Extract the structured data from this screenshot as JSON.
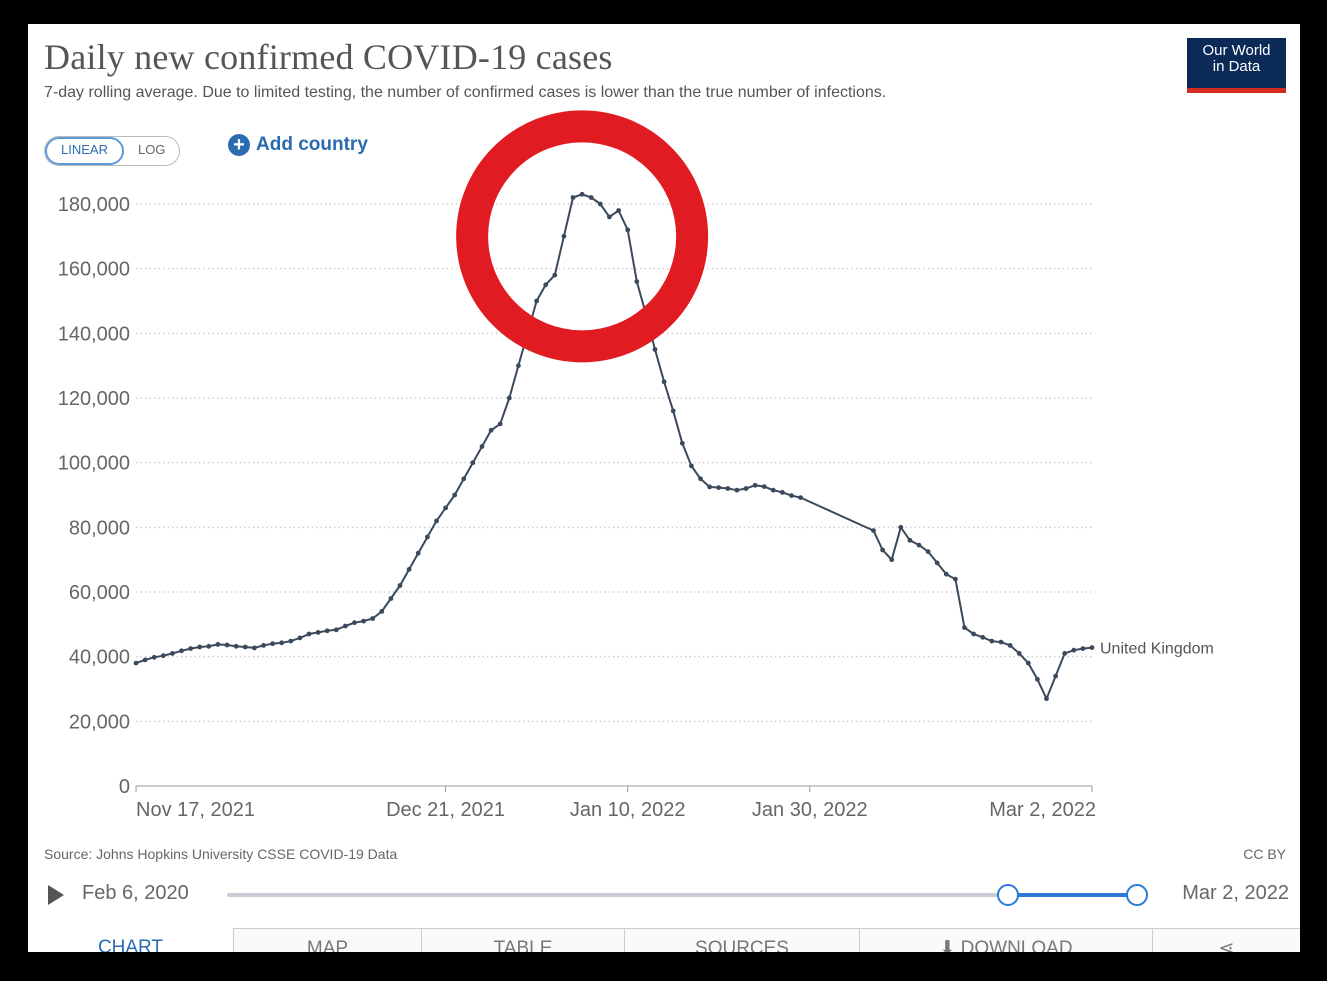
{
  "header": {
    "title": "Daily new confirmed COVID-19 cases",
    "subtitle": "7-day rolling average. Due to limited testing, the number of confirmed cases is lower than the true number of infections.",
    "logo_line1": "Our World",
    "logo_line2": "in Data"
  },
  "controls": {
    "linear_label": "LINEAR",
    "log_label": "LOG",
    "active_scale": "LINEAR",
    "add_country_label": "Add country"
  },
  "chart_data": {
    "type": "line",
    "title": "Daily new confirmed COVID-19 cases",
    "subtitle": "7-day rolling average. Due to limited testing, the number of confirmed cases is lower than the true number of infections.",
    "xlabel": "",
    "ylabel": "",
    "ylim": [
      0,
      180000
    ],
    "y_ticks": [
      0,
      20000,
      40000,
      60000,
      80000,
      100000,
      120000,
      140000,
      160000,
      180000
    ],
    "y_tick_labels": [
      "0",
      "20,000",
      "40,000",
      "60,000",
      "80,000",
      "100,000",
      "120,000",
      "140,000",
      "160,000",
      "180,000"
    ],
    "x_range": [
      "2021-11-17",
      "2022-03-02"
    ],
    "x_ticks": [
      "2021-11-17",
      "2021-12-21",
      "2022-01-10",
      "2022-01-30",
      "2022-03-02"
    ],
    "x_tick_labels": [
      "Nov 17, 2021",
      "Dec 21, 2021",
      "Jan 10, 2022",
      "Jan 30, 2022",
      "Mar 2, 2022"
    ],
    "grid": "horizontal dotted",
    "series": [
      {
        "name": "United Kingdom",
        "color": "#3a4a5c",
        "x": [
          "2021-11-17",
          "2021-11-18",
          "2021-11-19",
          "2021-11-20",
          "2021-11-21",
          "2021-11-22",
          "2021-11-23",
          "2021-11-24",
          "2021-11-25",
          "2021-11-26",
          "2021-11-27",
          "2021-11-28",
          "2021-11-29",
          "2021-11-30",
          "2021-12-01",
          "2021-12-02",
          "2021-12-03",
          "2021-12-04",
          "2021-12-05",
          "2021-12-06",
          "2021-12-07",
          "2021-12-08",
          "2021-12-09",
          "2021-12-10",
          "2021-12-11",
          "2021-12-12",
          "2021-12-13",
          "2021-12-14",
          "2021-12-15",
          "2021-12-16",
          "2021-12-17",
          "2021-12-18",
          "2021-12-19",
          "2021-12-20",
          "2021-12-21",
          "2021-12-22",
          "2021-12-23",
          "2021-12-24",
          "2021-12-25",
          "2021-12-26",
          "2021-12-27",
          "2021-12-28",
          "2021-12-29",
          "2021-12-30",
          "2021-12-31",
          "2022-01-01",
          "2022-01-02",
          "2022-01-03",
          "2022-01-04",
          "2022-01-05",
          "2022-01-06",
          "2022-01-07",
          "2022-01-08",
          "2022-01-09",
          "2022-01-10",
          "2022-01-11",
          "2022-01-12",
          "2022-01-13",
          "2022-01-14",
          "2022-01-15",
          "2022-01-16",
          "2022-01-17",
          "2022-01-18",
          "2022-01-19",
          "2022-01-20",
          "2022-01-21",
          "2022-01-22",
          "2022-01-23",
          "2022-01-24",
          "2022-01-25",
          "2022-01-26",
          "2022-01-27",
          "2022-01-28",
          "2022-01-29",
          "2022-02-06",
          "2022-02-07",
          "2022-02-08",
          "2022-02-09",
          "2022-02-10",
          "2022-02-11",
          "2022-02-12",
          "2022-02-13",
          "2022-02-14",
          "2022-02-15",
          "2022-02-16",
          "2022-02-17",
          "2022-02-18",
          "2022-02-19",
          "2022-02-20",
          "2022-02-21",
          "2022-02-22",
          "2022-02-23",
          "2022-02-24",
          "2022-02-25",
          "2022-02-26",
          "2022-02-27",
          "2022-02-28",
          "2022-03-01",
          "2022-03-02"
        ],
        "values": [
          38000,
          39000,
          39800,
          40300,
          41000,
          41800,
          42500,
          43000,
          43200,
          43800,
          43600,
          43200,
          43000,
          42700,
          43500,
          44000,
          44300,
          44800,
          45800,
          47000,
          47500,
          48000,
          48300,
          49500,
          50500,
          51000,
          51800,
          54000,
          58000,
          62000,
          67000,
          72000,
          77000,
          82000,
          86000,
          90000,
          95000,
          100000,
          105000,
          110000,
          112000,
          120000,
          130000,
          140000,
          150000,
          155000,
          158000,
          170000,
          182000,
          183000,
          182000,
          180000,
          176000,
          178000,
          172000,
          156000,
          146000,
          135000,
          125000,
          116000,
          106000,
          99000,
          95000,
          92500,
          92300,
          92000,
          91500,
          92000,
          93000,
          92600,
          91500,
          90800,
          89800,
          89200,
          79000,
          73000,
          70000,
          80000,
          76000,
          74500,
          72500,
          69000,
          65500,
          64000,
          49000,
          47000,
          46000,
          44800,
          44500,
          43500,
          41000,
          38000,
          33000,
          27000,
          34000,
          41000,
          42000,
          42500,
          42800
        ]
      }
    ],
    "series_label": "United Kingdom"
  },
  "footer": {
    "source": "Source: Johns Hopkins University CSSE COVID-19 Data",
    "license": "CC BY",
    "timeline_start": "Feb 6, 2020",
    "timeline_end": "Mar 2, 2022",
    "timeline_selection_start_fraction": 0.858,
    "timeline_selection_end_fraction": 1.0
  },
  "tabs": [
    {
      "label": "CHART",
      "active": true
    },
    {
      "label": "MAP"
    },
    {
      "label": "TABLE"
    },
    {
      "label": "SOURCES"
    },
    {
      "label": "⬇ DOWNLOAD"
    },
    {
      "label": "⋖"
    }
  ],
  "annotation": {
    "color": "#e11b22",
    "target_date": "2022-01-05",
    "target_value": 170000
  }
}
